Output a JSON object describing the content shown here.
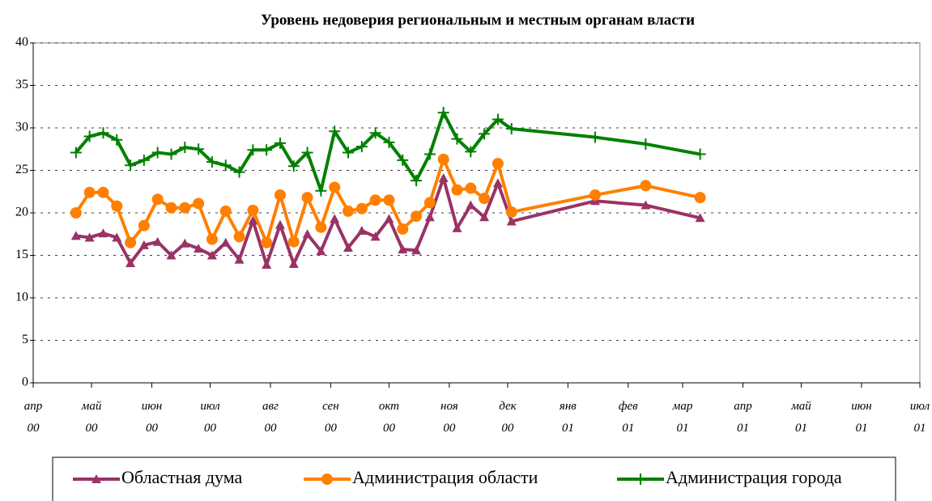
{
  "chart_data": {
    "type": "line",
    "title": "Уровень недоверия региональным и местным органам власти",
    "x": [
      "2000-04-23",
      "2000-04-30",
      "2000-05-07",
      "2000-05-14",
      "2000-05-21",
      "2000-05-28",
      "2000-06-04",
      "2000-06-11",
      "2000-06-18",
      "2000-06-25",
      "2000-07-02",
      "2000-07-09",
      "2000-07-16",
      "2000-07-23",
      "2000-07-30",
      "2000-08-06",
      "2000-08-13",
      "2000-08-20",
      "2000-08-27",
      "2000-09-03",
      "2000-09-10",
      "2000-09-17",
      "2000-09-24",
      "2000-10-01",
      "2000-10-08",
      "2000-10-15",
      "2000-10-22",
      "2000-10-29",
      "2000-11-05",
      "2000-11-12",
      "2000-11-19",
      "2000-11-26",
      "2000-12-03",
      "2001-01-15",
      "2001-02-10",
      "2001-03-10"
    ],
    "series": [
      {
        "name": "Областная дума",
        "color": "#993366",
        "marker": "triangle",
        "values": [
          17.3,
          17.1,
          17.6,
          17.1,
          14.1,
          16.2,
          16.6,
          15.0,
          16.4,
          15.8,
          15.0,
          16.5,
          14.5,
          19.1,
          13.9,
          18.6,
          14.0,
          17.5,
          15.5,
          19.3,
          15.9,
          17.9,
          17.2,
          19.3,
          15.7,
          15.6,
          19.5,
          24.1,
          18.2,
          20.9,
          19.5,
          23.5,
          19.0,
          21.4,
          20.9,
          19.4
        ]
      },
      {
        "name": "Администрация области",
        "color": "#ff7f00",
        "marker": "circle",
        "values": [
          20.0,
          22.4,
          22.4,
          20.8,
          16.5,
          18.5,
          21.6,
          20.6,
          20.6,
          21.1,
          16.9,
          20.2,
          17.2,
          20.3,
          16.5,
          22.1,
          16.6,
          21.8,
          18.3,
          23.0,
          20.2,
          20.5,
          21.5,
          21.5,
          18.1,
          19.6,
          21.2,
          26.3,
          22.7,
          22.9,
          21.7,
          25.8,
          20.1,
          22.1,
          23.2,
          21.8
        ]
      },
      {
        "name": "Администрация города",
        "color": "#008000",
        "marker": "plus",
        "values": [
          27.1,
          29.0,
          29.4,
          28.6,
          25.6,
          26.2,
          27.1,
          26.9,
          27.7,
          27.5,
          26.0,
          25.6,
          24.8,
          27.4,
          27.4,
          28.2,
          25.5,
          27.1,
          22.6,
          29.6,
          27.1,
          27.8,
          29.4,
          28.3,
          26.2,
          23.8,
          26.9,
          31.8,
          28.7,
          27.2,
          29.3,
          31.0,
          29.9,
          28.9,
          28.1,
          26.9
        ]
      }
    ],
    "xlim": [
      "2000-04-01",
      "2001-07-01"
    ],
    "xticks": [
      {
        "value": "2000-04-01",
        "label": "апр 00"
      },
      {
        "value": "2000-05-01",
        "label": "май 00"
      },
      {
        "value": "2000-06-01",
        "label": "июн 00"
      },
      {
        "value": "2000-07-01",
        "label": "июл 00"
      },
      {
        "value": "2000-08-01",
        "label": "авг 00"
      },
      {
        "value": "2000-09-01",
        "label": "сен 00"
      },
      {
        "value": "2000-10-01",
        "label": "окт 00"
      },
      {
        "value": "2000-11-01",
        "label": "ноя 00"
      },
      {
        "value": "2000-12-01",
        "label": "дек 00"
      },
      {
        "value": "2001-01-01",
        "label": "янв 01"
      },
      {
        "value": "2001-02-01",
        "label": "фев 01"
      },
      {
        "value": "2001-03-01",
        "label": "мар 01"
      },
      {
        "value": "2001-04-01",
        "label": "апр 01"
      },
      {
        "value": "2001-05-01",
        "label": "май 01"
      },
      {
        "value": "2001-06-01",
        "label": "июн 01"
      },
      {
        "value": "2001-07-01",
        "label": "июл 01"
      }
    ],
    "ylim": [
      0,
      40
    ],
    "yticks": [
      0,
      5,
      10,
      15,
      20,
      25,
      30,
      35,
      40
    ],
    "grid": true,
    "legend": "bottom"
  }
}
